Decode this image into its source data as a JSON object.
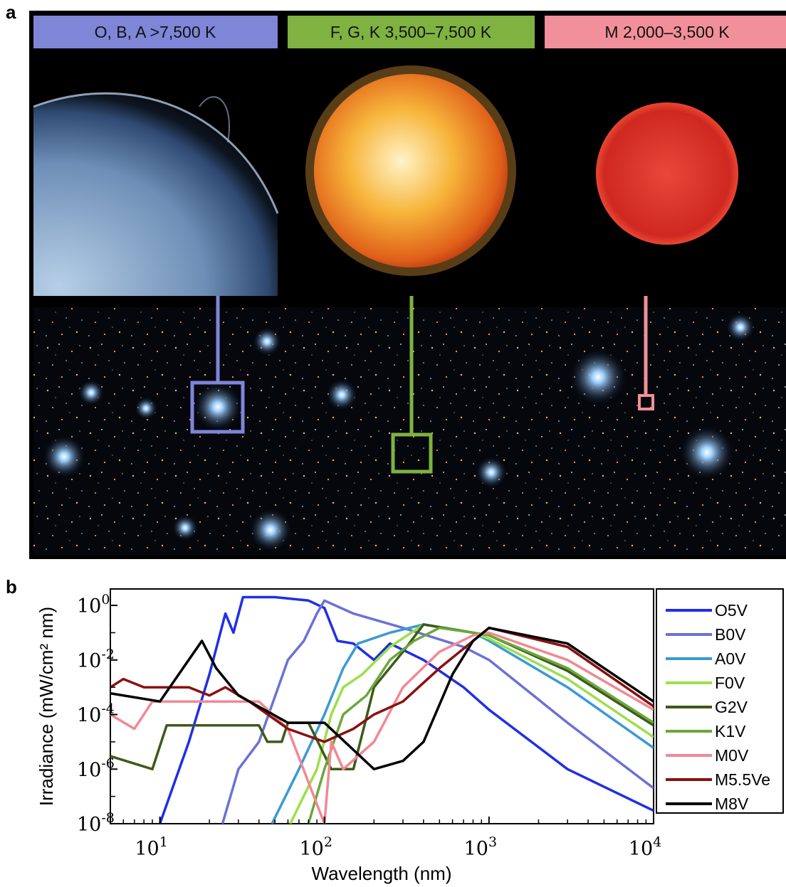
{
  "panel_a": {
    "letter": "a",
    "categories": [
      {
        "label": "O, B, A >7,500 K",
        "color": "#7f86d8"
      },
      {
        "label": "F, G, K 3,500–7,500 K",
        "color": "#7fb241"
      },
      {
        "label": "M 2,000–3,500 K",
        "color": "#f1909a"
      }
    ]
  },
  "panel_b": {
    "letter": "b"
  },
  "chart_data": {
    "type": "line",
    "xlabel": "Wavelength (nm)",
    "ylabel": "Irradiance (mW/cm² nm)",
    "x_scale": "log",
    "y_scale": "log",
    "xlim": [
      5,
      10000
    ],
    "ylim": [
      1e-08,
      4
    ],
    "x_ticks": [
      {
        "base": "10",
        "exp": "1"
      },
      {
        "base": "10",
        "exp": "2"
      },
      {
        "base": "10",
        "exp": "3"
      },
      {
        "base": "10",
        "exp": "4"
      }
    ],
    "y_ticks": [
      {
        "base": "10",
        "exp": "0"
      },
      {
        "base": "10",
        "exp": "-2"
      },
      {
        "base": "10",
        "exp": "-4"
      },
      {
        "base": "10",
        "exp": "-6"
      },
      {
        "base": "10",
        "exp": "-8"
      }
    ],
    "legend_position": "right-outside",
    "series": [
      {
        "name": "O5V",
        "color": "#1f2fe6",
        "points": [
          [
            10,
            1e-08
          ],
          [
            15,
            1e-05
          ],
          [
            20,
            0.003
          ],
          [
            25,
            0.5
          ],
          [
            28,
            0.1
          ],
          [
            32,
            2
          ],
          [
            50,
            2
          ],
          [
            80,
            1.5
          ],
          [
            100,
            0.8
          ],
          [
            120,
            0.05
          ],
          [
            150,
            0.04
          ],
          [
            200,
            0.01
          ],
          [
            250,
            0.04
          ],
          [
            400,
            0.01
          ],
          [
            700,
            0.001
          ],
          [
            1000,
            0.00015
          ],
          [
            3000,
            1e-06
          ],
          [
            10000,
            3e-08
          ]
        ]
      },
      {
        "name": "B0V",
        "color": "#6a72d6",
        "points": [
          [
            24,
            1e-08
          ],
          [
            30,
            1e-06
          ],
          [
            40,
            1e-05
          ],
          [
            60,
            0.01
          ],
          [
            75,
            0.05
          ],
          [
            90,
            0.5
          ],
          [
            100,
            1.5
          ],
          [
            150,
            0.5
          ],
          [
            300,
            0.15
          ],
          [
            700,
            0.03
          ],
          [
            1000,
            0.01
          ],
          [
            3000,
            5e-05
          ],
          [
            10000,
            2e-07
          ]
        ]
      },
      {
        "name": "A0V",
        "color": "#3a9ad4",
        "points": [
          [
            48,
            1e-08
          ],
          [
            70,
            1e-06
          ],
          [
            100,
            0.0001
          ],
          [
            130,
            0.005
          ],
          [
            160,
            0.04
          ],
          [
            250,
            0.1
          ],
          [
            400,
            0.2
          ],
          [
            800,
            0.1
          ],
          [
            1000,
            0.05
          ],
          [
            3000,
            0.001
          ],
          [
            10000,
            6e-06
          ]
        ]
      },
      {
        "name": "F0V",
        "color": "#9be04a",
        "points": [
          [
            62,
            1e-08
          ],
          [
            90,
            1e-06
          ],
          [
            110,
            0.0001
          ],
          [
            130,
            0.001
          ],
          [
            170,
            0.003
          ],
          [
            250,
            0.03
          ],
          [
            400,
            0.2
          ],
          [
            800,
            0.1
          ],
          [
            1000,
            0.06
          ],
          [
            3000,
            0.002
          ],
          [
            10000,
            1.5e-05
          ]
        ]
      },
      {
        "name": "G2V",
        "color": "#3d5a1a",
        "points": [
          [
            5,
            3e-06
          ],
          [
            9,
            1e-06
          ],
          [
            11,
            4e-05
          ],
          [
            40,
            4e-05
          ],
          [
            45,
            1e-05
          ],
          [
            55,
            1e-05
          ],
          [
            60,
            5e-05
          ],
          [
            80,
            5e-05
          ],
          [
            110,
            1e-06
          ],
          [
            150,
            1e-06
          ],
          [
            200,
            0.001
          ],
          [
            300,
            0.02
          ],
          [
            400,
            0.2
          ],
          [
            800,
            0.1
          ],
          [
            1000,
            0.08
          ],
          [
            3000,
            0.004
          ],
          [
            10000,
            4e-05
          ]
        ]
      },
      {
        "name": "K1V",
        "color": "#6aa83a",
        "points": [
          [
            80,
            1e-08
          ],
          [
            100,
            1e-06
          ],
          [
            130,
            0.0001
          ],
          [
            180,
            0.0005
          ],
          [
            250,
            0.01
          ],
          [
            350,
            0.05
          ],
          [
            500,
            0.15
          ],
          [
            800,
            0.1
          ],
          [
            1000,
            0.08
          ],
          [
            3000,
            0.005
          ],
          [
            10000,
            5e-05
          ]
        ]
      },
      {
        "name": "M0V",
        "color": "#f28893",
        "points": [
          [
            5,
            0.0001
          ],
          [
            7,
            3e-05
          ],
          [
            9,
            0.0003
          ],
          [
            20,
            0.0003
          ],
          [
            40,
            0.0003
          ],
          [
            60,
            3e-05
          ],
          [
            100,
            1e-08
          ],
          [
            110,
            1e-05
          ],
          [
            130,
            1e-06
          ],
          [
            200,
            1e-05
          ],
          [
            300,
            0.001
          ],
          [
            500,
            0.02
          ],
          [
            800,
            0.08
          ],
          [
            1000,
            0.1
          ],
          [
            3000,
            0.01
          ],
          [
            10000,
            0.00015
          ]
        ]
      },
      {
        "name": "M5.5Ve",
        "color": "#8a1010",
        "points": [
          [
            5,
            0.001
          ],
          [
            6,
            0.002
          ],
          [
            8,
            0.001
          ],
          [
            15,
            0.001
          ],
          [
            20,
            0.0005
          ],
          [
            25,
            0.001
          ],
          [
            35,
            0.0003
          ],
          [
            60,
            3e-05
          ],
          [
            100,
            1e-05
          ],
          [
            150,
            3e-05
          ],
          [
            200,
            0.0001
          ],
          [
            300,
            0.0003
          ],
          [
            500,
            0.005
          ],
          [
            800,
            0.05
          ],
          [
            1000,
            0.15
          ],
          [
            3000,
            0.03
          ],
          [
            10000,
            0.0002
          ]
        ]
      },
      {
        "name": "M8V",
        "color": "#000000",
        "points": [
          [
            5,
            0.0006
          ],
          [
            10,
            0.0003
          ],
          [
            18,
            0.05
          ],
          [
            22,
            0.005
          ],
          [
            30,
            0.0005
          ],
          [
            60,
            5e-05
          ],
          [
            100,
            5e-05
          ],
          [
            200,
            1e-06
          ],
          [
            300,
            2e-06
          ],
          [
            400,
            1e-05
          ],
          [
            600,
            0.003
          ],
          [
            800,
            0.05
          ],
          [
            1000,
            0.15
          ],
          [
            3000,
            0.04
          ],
          [
            10000,
            0.0003
          ]
        ]
      }
    ]
  }
}
